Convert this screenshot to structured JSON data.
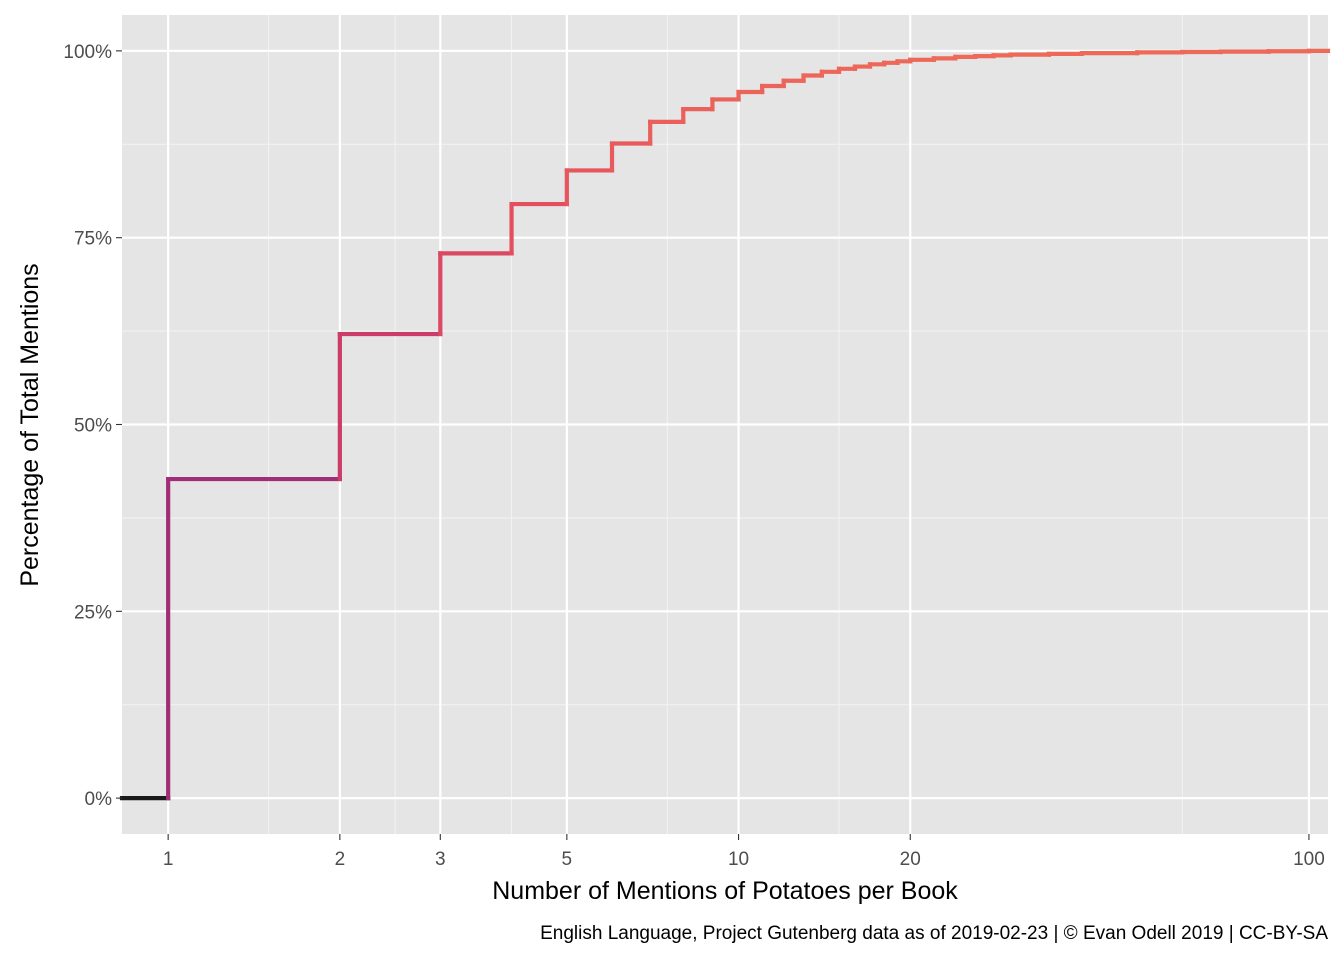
{
  "chart_data": {
    "type": "line",
    "subtype": "step-ecdf",
    "x_scale": "log",
    "xlabel": "Number of Mentions of Potatoes per Book",
    "ylabel": "Percentage of Total Mentions",
    "caption": "English Language, Project Gutenberg data as of 2019-02-23 | © Evan Odell 2019 | CC-BY-SA",
    "xlim": [
      0.83,
      108
    ],
    "ylim": [
      -0.048,
      1.048
    ],
    "x_ticks": [
      1,
      2,
      3,
      5,
      10,
      20,
      100
    ],
    "x_tick_labels": [
      "1",
      "2",
      "3",
      "5",
      "10",
      "20",
      "100"
    ],
    "x_minor_grid": [
      1.5,
      2.5,
      4,
      7.5,
      15,
      60
    ],
    "y_ticks": [
      0,
      0.25,
      0.5,
      0.75,
      1
    ],
    "y_tick_labels": [
      "0%",
      "25%",
      "50%",
      "75%",
      "100%"
    ],
    "grid": true,
    "legend": "none",
    "background": "#e5e5e5",
    "color_scale": [
      "#1a1a1a",
      "#5c1f75",
      "#9b2b79",
      "#c93a6a",
      "#e5505e",
      "#ee6a58"
    ],
    "points": [
      {
        "x": 0.83,
        "y": 0
      },
      {
        "x": 1,
        "y": 0.427
      },
      {
        "x": 2,
        "y": 0.621
      },
      {
        "x": 3,
        "y": 0.729
      },
      {
        "x": 4,
        "y": 0.795
      },
      {
        "x": 5,
        "y": 0.84
      },
      {
        "x": 6,
        "y": 0.876
      },
      {
        "x": 7,
        "y": 0.905
      },
      {
        "x": 8,
        "y": 0.922
      },
      {
        "x": 9,
        "y": 0.935
      },
      {
        "x": 10,
        "y": 0.945
      },
      {
        "x": 11,
        "y": 0.953
      },
      {
        "x": 12,
        "y": 0.96
      },
      {
        "x": 13,
        "y": 0.967
      },
      {
        "x": 14,
        "y": 0.972
      },
      {
        "x": 15,
        "y": 0.976
      },
      {
        "x": 16,
        "y": 0.979
      },
      {
        "x": 17,
        "y": 0.982
      },
      {
        "x": 18,
        "y": 0.984
      },
      {
        "x": 19,
        "y": 0.986
      },
      {
        "x": 20,
        "y": 0.988
      },
      {
        "x": 22,
        "y": 0.99
      },
      {
        "x": 24,
        "y": 0.992
      },
      {
        "x": 26,
        "y": 0.993
      },
      {
        "x": 28,
        "y": 0.994
      },
      {
        "x": 30,
        "y": 0.995
      },
      {
        "x": 35,
        "y": 0.996
      },
      {
        "x": 40,
        "y": 0.997
      },
      {
        "x": 50,
        "y": 0.998
      },
      {
        "x": 60,
        "y": 0.9985
      },
      {
        "x": 70,
        "y": 0.999
      },
      {
        "x": 85,
        "y": 0.9995
      },
      {
        "x": 100,
        "y": 1.0
      },
      {
        "x": 108,
        "y": 1.0
      }
    ]
  }
}
